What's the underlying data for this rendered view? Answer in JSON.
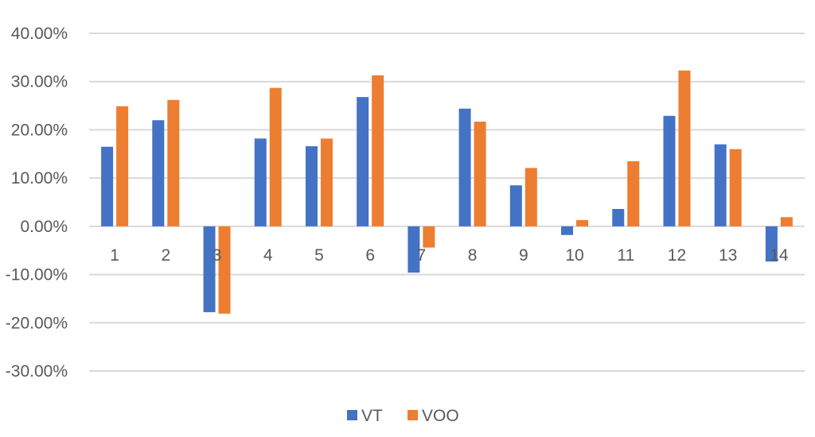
{
  "chart_data": {
    "type": "bar",
    "categories": [
      "1",
      "2",
      "3",
      "4",
      "5",
      "6",
      "7",
      "8",
      "9",
      "10",
      "11",
      "12",
      "13",
      "14"
    ],
    "series": [
      {
        "name": "VT",
        "color": "#4472C4",
        "values": [
          16.5,
          22.0,
          -17.8,
          18.2,
          16.6,
          26.8,
          -9.6,
          24.4,
          8.5,
          -1.8,
          3.6,
          22.9,
          17.0,
          -7.3
        ]
      },
      {
        "name": "VOO",
        "color": "#ED7D31",
        "values": [
          24.9,
          26.2,
          -18.1,
          28.7,
          18.2,
          31.3,
          -4.4,
          21.7,
          12.1,
          1.3,
          13.5,
          32.3,
          16.0,
          1.9
        ]
      }
    ],
    "ylim": [
      -30,
      40
    ],
    "y_ticks": [
      "40.00%",
      "30.00%",
      "20.00%",
      "10.00%",
      "0.00%",
      "-10.00%",
      "-20.00%",
      "-30.00%"
    ],
    "y_tick_values": [
      40,
      30,
      20,
      10,
      0,
      -10,
      -20,
      -30
    ],
    "grid": true,
    "legend_position": "bottom",
    "gridline_color": "#D9D9D9",
    "text_color": "#595959"
  }
}
